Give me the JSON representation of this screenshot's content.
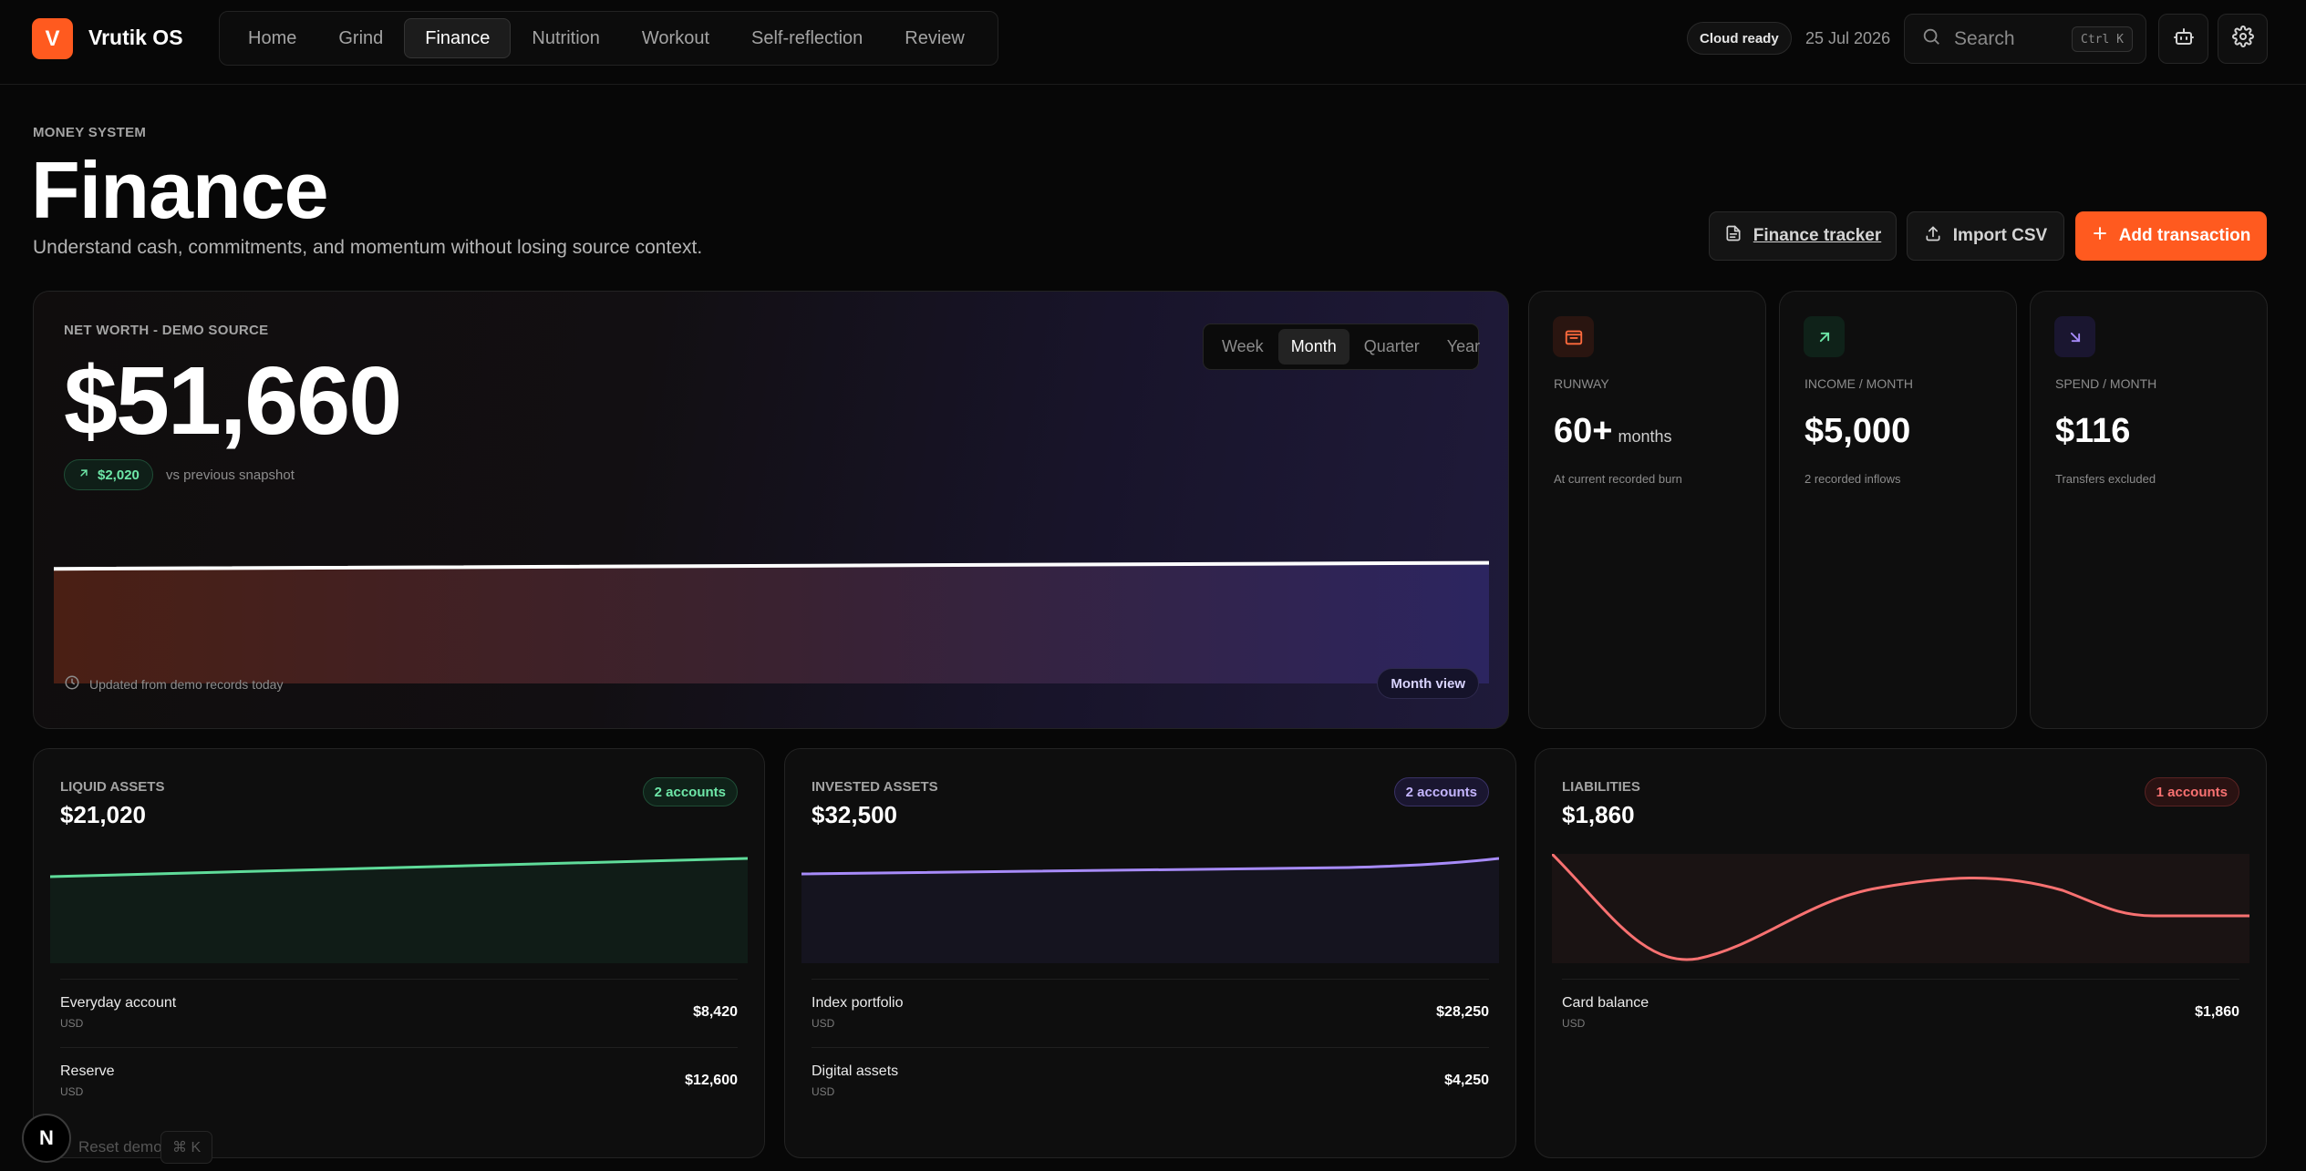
{
  "app": {
    "logo_letter": "V",
    "name": "Vrutik OS"
  },
  "nav": [
    {
      "label": "Home",
      "active": false
    },
    {
      "label": "Grind",
      "active": false
    },
    {
      "label": "Finance",
      "active": true
    },
    {
      "label": "Nutrition",
      "active": false
    },
    {
      "label": "Workout",
      "active": false
    },
    {
      "label": "Self-reflection",
      "active": false
    },
    {
      "label": "Review",
      "active": false
    }
  ],
  "topbar": {
    "status": "Cloud ready",
    "date": "25 Jul 2026",
    "search_placeholder": "Search",
    "search_shortcut": "Ctrl K",
    "icons": [
      "search-icon",
      "bot-icon",
      "gear-icon"
    ]
  },
  "header": {
    "eyebrow": "MONEY SYSTEM",
    "title": "Finance",
    "subtitle": "Understand cash, commitments, and momentum without losing source context.",
    "buttons": {
      "tracker": "Finance tracker",
      "import": "Import CSV",
      "add": "Add transaction"
    }
  },
  "networth": {
    "label": "NET WORTH - DEMO SOURCE",
    "value": "$51,660",
    "delta": "$2,020",
    "delta_note": "vs previous snapshot",
    "periods": [
      "Week",
      "Month",
      "Quarter",
      "Year"
    ],
    "active_period": "Month",
    "updated": "Updated from demo records today",
    "view_badge": "Month view",
    "trend_start_fraction": 0.44,
    "trend_end_fraction": 0.52
  },
  "stats": [
    {
      "icon": "wallet-icon",
      "label": "RUNWAY",
      "value": "60+",
      "unit": "months",
      "note": "At current recorded burn",
      "color": "#ff6a3d",
      "bg": "#2a1510"
    },
    {
      "icon": "arrow-up-right-icon",
      "label": "INCOME / MONTH",
      "value": "$5,000",
      "unit": "",
      "note": "2 recorded inflows",
      "color": "#6ee7a8",
      "bg": "#0f2219"
    },
    {
      "icon": "arrow-down-right-icon",
      "label": "SPEND / MONTH",
      "value": "$116",
      "unit": "",
      "note": "Transfers excluded",
      "color": "#a78bfa",
      "bg": "#1a1630"
    }
  ],
  "assets": [
    {
      "label": "LIQUID ASSETS",
      "value": "$21,020",
      "badge": "2 accounts",
      "color": "#5fdc9a",
      "badge_bg": "#0f2219",
      "badge_border": "#1f4d36",
      "fill": "#101c17",
      "rows": [
        {
          "name": "Everyday account",
          "currency": "USD",
          "amount": "$8,420"
        },
        {
          "name": "Reserve",
          "currency": "USD",
          "amount": "$12,600"
        }
      ]
    },
    {
      "label": "INVESTED ASSETS",
      "value": "$32,500",
      "badge": "2 accounts",
      "color": "#a78bfa",
      "badge_bg": "#1a1630",
      "badge_border": "#3a3266",
      "fill": "#15141f",
      "rows": [
        {
          "name": "Index portfolio",
          "currency": "USD",
          "amount": "$28,250"
        },
        {
          "name": "Digital assets",
          "currency": "USD",
          "amount": "$4,250"
        }
      ]
    },
    {
      "label": "LIABILITIES",
      "value": "$1,860",
      "badge": "1 accounts",
      "color": "#f87171",
      "badge_bg": "#2a1212",
      "badge_border": "#5a2323",
      "fill": "#1a1313",
      "rows": [
        {
          "name": "Card balance",
          "currency": "USD",
          "amount": "$1,860"
        }
      ]
    }
  ],
  "overlay": {
    "n_badge": "N",
    "reset_label": "Reset demo",
    "reset_shortcut": "⌘ K"
  }
}
